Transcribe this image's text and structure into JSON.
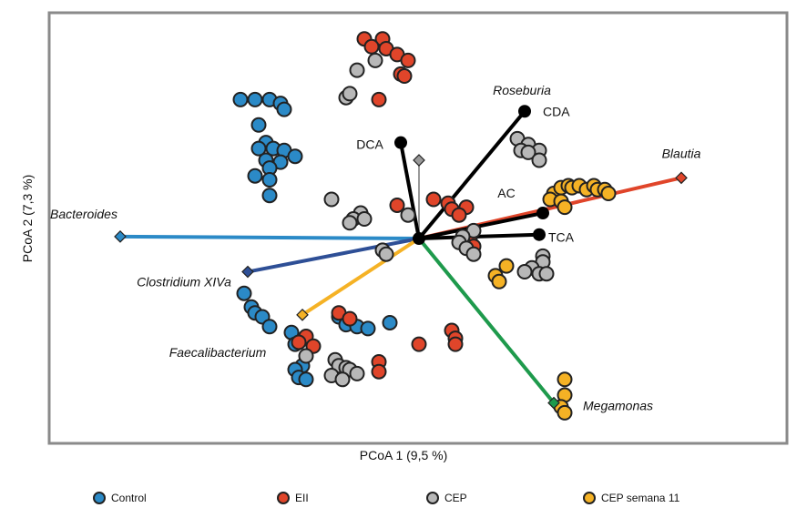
{
  "chart_data": {
    "type": "scatter",
    "title": "",
    "xlabel": "PCoA 1 (9,5 %)",
    "ylabel": "PCoA 2 (7,3 %)",
    "xlim": [
      -1,
      1
    ],
    "ylim": [
      -1,
      1
    ],
    "grid": false,
    "legend_position": "bottom",
    "colors": {
      "Control": "#2b8ac7",
      "EII": "#e0452a",
      "CEP": "#b8b8b8",
      "CEP semana 11": "#f5b225"
    },
    "series": [
      {
        "name": "Control",
        "points": [
          [
            -0.49,
            0.71
          ],
          [
            -0.45,
            0.71
          ],
          [
            -0.41,
            0.71
          ],
          [
            -0.38,
            0.69
          ],
          [
            -0.37,
            0.66
          ],
          [
            -0.44,
            0.58
          ],
          [
            -0.42,
            0.49
          ],
          [
            -0.44,
            0.46
          ],
          [
            -0.4,
            0.46
          ],
          [
            -0.37,
            0.45
          ],
          [
            -0.34,
            0.42
          ],
          [
            -0.42,
            0.4
          ],
          [
            -0.38,
            0.39
          ],
          [
            -0.41,
            0.36
          ],
          [
            -0.45,
            0.32
          ],
          [
            -0.41,
            0.3
          ],
          [
            -0.41,
            0.22
          ],
          [
            -0.48,
            -0.28
          ],
          [
            -0.46,
            -0.35
          ],
          [
            -0.45,
            -0.38
          ],
          [
            -0.43,
            -0.4
          ],
          [
            -0.41,
            -0.45
          ],
          [
            -0.22,
            -0.4
          ],
          [
            -0.2,
            -0.44
          ],
          [
            -0.17,
            -0.45
          ],
          [
            -0.14,
            -0.46
          ],
          [
            -0.08,
            -0.43
          ],
          [
            -0.35,
            -0.48
          ],
          [
            -0.34,
            -0.54
          ],
          [
            -0.32,
            -0.65
          ],
          [
            -0.34,
            -0.67
          ],
          [
            -0.33,
            -0.71
          ],
          [
            -0.31,
            -0.72
          ]
        ]
      },
      {
        "name": "EII",
        "points": [
          [
            -0.15,
            1.02
          ],
          [
            -0.1,
            1.02
          ],
          [
            -0.13,
            0.98
          ],
          [
            -0.09,
            0.97
          ],
          [
            -0.06,
            0.94
          ],
          [
            -0.03,
            0.91
          ],
          [
            -0.05,
            0.84
          ],
          [
            -0.04,
            0.83
          ],
          [
            -0.11,
            0.71
          ],
          [
            0.04,
            0.2
          ],
          [
            0.08,
            0.18
          ],
          [
            0.09,
            0.15
          ],
          [
            0.13,
            0.16
          ],
          [
            0.11,
            0.12
          ],
          [
            -0.06,
            0.17
          ],
          [
            0.14,
            -0.01
          ],
          [
            0.15,
            -0.04
          ],
          [
            -0.22,
            -0.38
          ],
          [
            -0.19,
            -0.41
          ],
          [
            -0.31,
            -0.5
          ],
          [
            -0.33,
            -0.53
          ],
          [
            -0.29,
            -0.55
          ],
          [
            0.09,
            -0.47
          ],
          [
            0.1,
            -0.51
          ],
          [
            0.1,
            -0.54
          ],
          [
            -0.11,
            -0.63
          ],
          [
            -0.11,
            -0.68
          ],
          [
            0.0,
            -0.54
          ]
        ]
      },
      {
        "name": "CEP",
        "points": [
          [
            -0.12,
            0.91
          ],
          [
            -0.17,
            0.86
          ],
          [
            -0.2,
            0.72
          ],
          [
            -0.19,
            0.74
          ],
          [
            0.27,
            0.51
          ],
          [
            0.3,
            0.48
          ],
          [
            0.28,
            0.45
          ],
          [
            0.33,
            0.45
          ],
          [
            0.3,
            0.44
          ],
          [
            0.33,
            0.4
          ],
          [
            -0.24,
            0.2
          ],
          [
            -0.16,
            0.13
          ],
          [
            -0.18,
            0.1
          ],
          [
            -0.15,
            0.1
          ],
          [
            -0.19,
            0.08
          ],
          [
            -0.03,
            0.12
          ],
          [
            0.15,
            0.04
          ],
          [
            0.12,
            0.01
          ],
          [
            0.11,
            -0.02
          ],
          [
            0.13,
            -0.05
          ],
          [
            0.15,
            -0.08
          ],
          [
            -0.1,
            -0.06
          ],
          [
            -0.09,
            -0.08
          ],
          [
            0.34,
            -0.09
          ],
          [
            0.34,
            -0.12
          ],
          [
            0.31,
            -0.15
          ],
          [
            0.29,
            -0.17
          ],
          [
            0.33,
            -0.18
          ],
          [
            0.35,
            -0.18
          ],
          [
            -0.23,
            -0.62
          ],
          [
            -0.22,
            -0.65
          ],
          [
            -0.2,
            -0.66
          ],
          [
            -0.19,
            -0.67
          ],
          [
            -0.17,
            -0.69
          ],
          [
            -0.24,
            -0.7
          ],
          [
            -0.21,
            -0.72
          ],
          [
            -0.31,
            -0.6
          ]
        ]
      },
      {
        "name": "CEP semana 11",
        "points": [
          [
            0.37,
            0.23
          ],
          [
            0.39,
            0.26
          ],
          [
            0.41,
            0.27
          ],
          [
            0.42,
            0.26
          ],
          [
            0.44,
            0.27
          ],
          [
            0.46,
            0.25
          ],
          [
            0.48,
            0.27
          ],
          [
            0.49,
            0.25
          ],
          [
            0.51,
            0.25
          ],
          [
            0.52,
            0.23
          ],
          [
            0.36,
            0.2
          ],
          [
            0.39,
            0.19
          ],
          [
            0.4,
            0.16
          ],
          [
            0.24,
            -0.14
          ],
          [
            0.21,
            -0.19
          ],
          [
            0.22,
            -0.22
          ],
          [
            0.4,
            -0.72
          ],
          [
            0.4,
            -0.8
          ],
          [
            0.39,
            -0.86
          ],
          [
            0.4,
            -0.89
          ]
        ]
      }
    ],
    "vectors": [
      {
        "label": "Bacteroides",
        "italic": true,
        "end": [
          -0.82,
          0.01
        ],
        "color": "#2b8ac7",
        "marker": "diamond"
      },
      {
        "label": "Clostridium XIVa",
        "italic": true,
        "end": [
          -0.47,
          -0.17
        ],
        "color": "#2e4f96",
        "marker": "diamond"
      },
      {
        "label": "Faecalibacterium",
        "italic": true,
        "end": [
          -0.32,
          -0.39
        ],
        "color": "#f5b225",
        "marker": "diamond"
      },
      {
        "label": "Megamonas",
        "italic": true,
        "end": [
          0.37,
          -0.84
        ],
        "color": "#1e9a4c",
        "marker": "diamond"
      },
      {
        "label": "Blautia",
        "italic": true,
        "end": [
          0.72,
          0.31
        ],
        "color": "#e0452a",
        "marker": "diamond"
      },
      {
        "label": "Roseburia",
        "italic": true,
        "end": [
          0.0,
          0.4
        ],
        "color": "#999999",
        "marker": "diamond"
      },
      {
        "label": "CDA",
        "italic": false,
        "end": [
          0.29,
          0.65
        ],
        "color": "#000000",
        "marker": "circle"
      },
      {
        "label": "DCA",
        "italic": false,
        "end": [
          -0.05,
          0.49
        ],
        "color": "#000000",
        "marker": "circle"
      },
      {
        "label": "AC",
        "italic": false,
        "end": [
          0.34,
          0.13
        ],
        "color": "#000000",
        "marker": "circle"
      },
      {
        "label": "TCA",
        "italic": false,
        "end": [
          0.33,
          0.02
        ],
        "color": "#000000",
        "marker": "circle"
      }
    ],
    "legend": [
      "Control",
      "EII",
      "CEP",
      "CEP semana 11"
    ]
  }
}
